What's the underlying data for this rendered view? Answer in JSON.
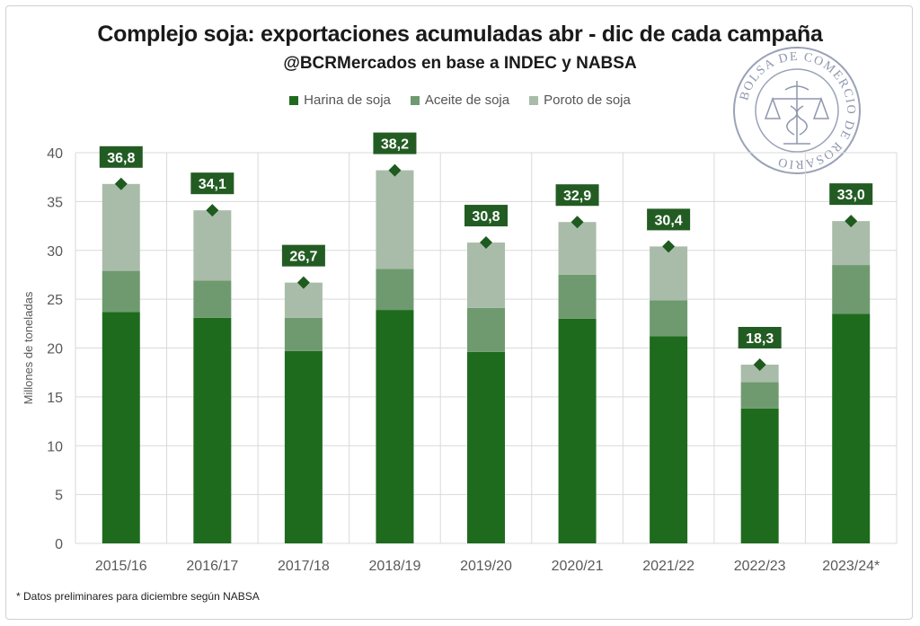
{
  "title": "Complejo soja: exportaciones acumuladas abr - dic de cada campaña",
  "subtitle": "@BCRMercados en base a INDEC y NABSA",
  "footnote": "* Datos preliminares para diciembre según NABSA",
  "seal": {
    "text": "BOLSA DE COMERCIO DE ROSARIO",
    "icon": "caduceus-scales-seal"
  },
  "colors": {
    "harina": "#1e6b1e",
    "aceite": "#6f9a6f",
    "poroto": "#a9bca9",
    "total_marker": "#1f5a1f",
    "label_box": "#235c23",
    "grid": "#d9d9d9",
    "axis_text": "#595959"
  },
  "chart_data": {
    "type": "bar",
    "stacked": true,
    "title": "Complejo soja: exportaciones acumuladas abr - dic de cada campaña",
    "subtitle": "@BCRMercados en base a INDEC y NABSA",
    "xlabel": "",
    "ylabel": "Millones de toneladas",
    "ylim": [
      0,
      40
    ],
    "yticks": [
      0,
      5,
      10,
      15,
      20,
      25,
      30,
      35,
      40
    ],
    "grid": true,
    "legend_position": "top-center",
    "categories": [
      "2015/16",
      "2016/17",
      "2017/18",
      "2018/19",
      "2019/20",
      "2020/21",
      "2021/22",
      "2022/23",
      "2023/24*"
    ],
    "series": [
      {
        "name": "Harina de soja",
        "color": "#1e6b1e",
        "values": [
          23.7,
          23.1,
          19.7,
          23.9,
          19.6,
          23.0,
          21.2,
          13.8,
          23.5
        ]
      },
      {
        "name": "Aceite de soja",
        "color": "#6f9a6f",
        "values": [
          4.2,
          3.8,
          3.4,
          4.2,
          4.5,
          4.5,
          3.7,
          2.7,
          5.0
        ]
      },
      {
        "name": "Poroto de soja",
        "color": "#a9bca9",
        "values": [
          8.9,
          7.2,
          3.6,
          10.1,
          6.7,
          5.4,
          5.5,
          1.8,
          4.5
        ]
      }
    ],
    "totals": [
      36.8,
      34.1,
      26.7,
      38.2,
      30.8,
      32.9,
      30.4,
      18.3,
      33.0
    ],
    "total_labels": [
      "36,8",
      "34,1",
      "26,7",
      "38,2",
      "30,8",
      "32,9",
      "30,4",
      "18,3",
      "33,0"
    ]
  }
}
